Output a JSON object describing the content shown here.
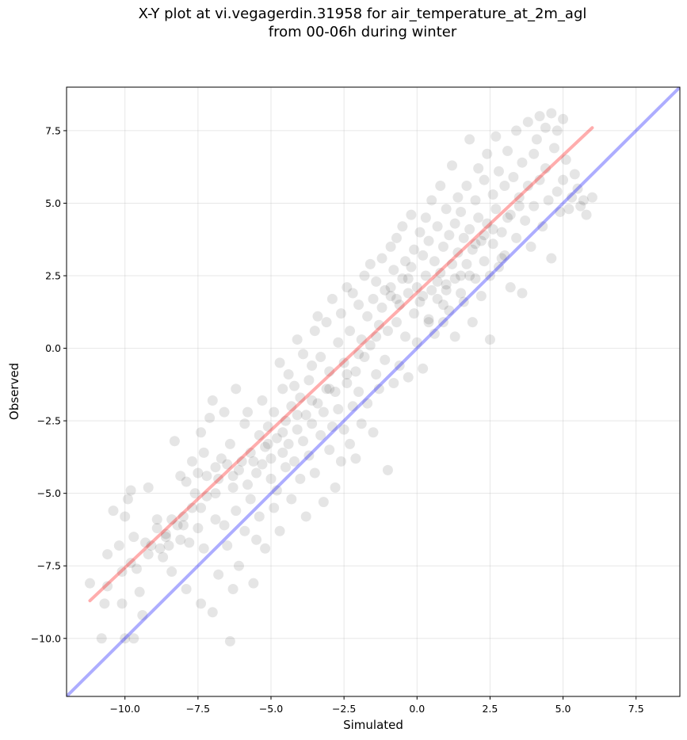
{
  "chart_data": {
    "type": "scatter",
    "title_lines": [
      "X-Y plot at vi.vegagerdin.31958 for air_temperature_at_2m_agl",
      "from 00-06h during winter"
    ],
    "xlabel": "Simulated",
    "ylabel": "Observed",
    "xlim": [
      -12,
      9
    ],
    "ylim": [
      -12,
      9
    ],
    "xticks": [
      -10.0,
      -7.5,
      -5.0,
      -2.5,
      0.0,
      2.5,
      5.0,
      7.5
    ],
    "yticks": [
      -10.0,
      -7.5,
      -5.0,
      -2.5,
      0.0,
      2.5,
      5.0,
      7.5
    ],
    "tick_labels": [
      "−10.0",
      "−7.5",
      "−5.0",
      "−2.5",
      "0.0",
      "2.5",
      "5.0",
      "7.5"
    ],
    "grid": true,
    "point_color": "#000000",
    "point_opacity": 0.1,
    "regression_line": {
      "color": "#ff0000",
      "x": [
        -11.2,
        6.0
      ],
      "y": [
        -8.7,
        7.6
      ]
    },
    "identity_line": {
      "color": "#0000ff",
      "x": [
        -12,
        9
      ],
      "y": [
        -12,
        9
      ]
    },
    "points": [
      [
        -11.2,
        -8.1
      ],
      [
        -10.8,
        -10
      ],
      [
        -10.7,
        -8.8
      ],
      [
        -10.6,
        -8.2
      ],
      [
        -10.6,
        -7.1
      ],
      [
        -10.4,
        -5.6
      ],
      [
        -10.2,
        -6.8
      ],
      [
        -10.1,
        -8.8
      ],
      [
        -10.1,
        -7.7
      ],
      [
        -10.0,
        -5.8
      ],
      [
        -10.0,
        -10
      ],
      [
        -9.9,
        -5.2
      ],
      [
        -9.8,
        -4.9
      ],
      [
        -9.7,
        -6.5
      ],
      [
        -9.7,
        -10
      ],
      [
        -9.6,
        -7.6
      ],
      [
        -9.5,
        -8.4
      ],
      [
        -9.4,
        -9.2
      ],
      [
        -9.3,
        -6.7
      ],
      [
        -9.2,
        -4.8
      ],
      [
        -9.1,
        -6.8
      ],
      [
        -8.9,
        -5.9
      ],
      [
        -8.9,
        -6.2
      ],
      [
        -8.8,
        -6.9
      ],
      [
        -8.7,
        -7.2
      ],
      [
        -8.6,
        -6.5
      ],
      [
        -8.5,
        -6.8
      ],
      [
        -8.4,
        -5.9
      ],
      [
        -8.4,
        -7.7
      ],
      [
        -8.3,
        -3.2
      ],
      [
        -8.2,
        -6.1
      ],
      [
        -8.1,
        -6.6
      ],
      [
        -8.1,
        -4.4
      ],
      [
        -8.0,
        -5.8
      ],
      [
        -7.9,
        -8.3
      ],
      [
        -7.9,
        -4.6
      ],
      [
        -7.8,
        -6.7
      ],
      [
        -7.7,
        -3.9
      ],
      [
        -7.7,
        -5.5
      ],
      [
        -7.6,
        -5.0
      ],
      [
        -7.5,
        -6.2
      ],
      [
        -7.5,
        -4.3
      ],
      [
        -7.4,
        -8.8
      ],
      [
        -7.4,
        -2.9
      ],
      [
        -7.3,
        -3.6
      ],
      [
        -7.3,
        -6.9
      ],
      [
        -7.2,
        -5.1
      ],
      [
        -7.2,
        -4.4
      ],
      [
        -7.1,
        -2.4
      ],
      [
        -7.0,
        -9.1
      ],
      [
        -7.0,
        -1.8
      ],
      [
        -6.9,
        -5.9
      ],
      [
        -6.9,
        -4.1
      ],
      [
        -6.8,
        -4.5
      ],
      [
        -6.8,
        -7.8
      ],
      [
        -6.7,
        -3.8
      ],
      [
        -6.6,
        -6.1
      ],
      [
        -6.6,
        -2.2
      ],
      [
        -6.5,
        -4.0
      ],
      [
        -6.5,
        -6.8
      ],
      [
        -6.4,
        -3.3
      ],
      [
        -6.4,
        -10.1
      ],
      [
        -6.3,
        -4.8
      ],
      [
        -6.3,
        -8.3
      ],
      [
        -6.2,
        -5.6
      ],
      [
        -6.2,
        -1.4
      ],
      [
        -6.1,
        -4.2
      ],
      [
        -6.1,
        -7.5
      ],
      [
        -6.0,
        -3.9
      ],
      [
        -5.9,
        -2.6
      ],
      [
        -5.9,
        -6.3
      ],
      [
        -5.8,
        -4.7
      ],
      [
        -5.8,
        -2.2
      ],
      [
        -5.7,
        -5.2
      ],
      [
        -5.7,
        -3.6
      ],
      [
        -5.6,
        -8.1
      ],
      [
        -5.5,
        -4.3
      ],
      [
        -5.5,
        -6.6
      ],
      [
        -5.4,
        -3.0
      ],
      [
        -5.4,
        -5.8
      ],
      [
        -5.3,
        -4.0
      ],
      [
        -5.3,
        -1.8
      ],
      [
        -5.2,
        -3.4
      ],
      [
        -5.2,
        -6.9
      ],
      [
        -5.1,
        -2.7
      ],
      [
        -5.0,
        -4.5
      ],
      [
        -5.0,
        -3.8
      ],
      [
        -4.9,
        -5.5
      ],
      [
        -4.9,
        -2.2
      ],
      [
        -4.8,
        -3.1
      ],
      [
        -4.8,
        -4.9
      ],
      [
        -4.7,
        -0.5
      ],
      [
        -4.7,
        -6.3
      ],
      [
        -4.6,
        -3.6
      ],
      [
        -4.6,
        -1.4
      ],
      [
        -4.5,
        -4.1
      ],
      [
        -4.5,
        -2.5
      ],
      [
        -4.4,
        -3.3
      ],
      [
        -4.4,
        -0.9
      ],
      [
        -4.3,
        -5.2
      ],
      [
        -4.3,
        -2.0
      ],
      [
        -4.2,
        -3.9
      ],
      [
        -4.2,
        -1.3
      ],
      [
        -4.1,
        -2.8
      ],
      [
        -4.1,
        0.3
      ],
      [
        -4.0,
        -4.5
      ],
      [
        -4.0,
        -1.7
      ],
      [
        -3.9,
        -3.2
      ],
      [
        -3.9,
        -0.2
      ],
      [
        -3.8,
        -2.3
      ],
      [
        -3.8,
        -5.8
      ],
      [
        -3.7,
        -1.1
      ],
      [
        -3.7,
        -3.7
      ],
      [
        -3.6,
        -0.6
      ],
      [
        -3.6,
        -2.6
      ],
      [
        -3.5,
        0.6
      ],
      [
        -3.5,
        -4.3
      ],
      [
        -3.4,
        -1.9
      ],
      [
        -3.4,
        1.1
      ],
      [
        -3.3,
        -3.0
      ],
      [
        -3.3,
        -0.3
      ],
      [
        -3.2,
        -2.2
      ],
      [
        -3.2,
        -5.3
      ],
      [
        -3.1,
        -1.4
      ],
      [
        -3.1,
        0.9
      ],
      [
        -3.0,
        -3.5
      ],
      [
        -3.0,
        -0.8
      ],
      [
        -2.9,
        -2.7
      ],
      [
        -2.9,
        1.7
      ],
      [
        -2.8,
        -1.5
      ],
      [
        -2.8,
        -4.8
      ],
      [
        -2.7,
        0.2
      ],
      [
        -2.7,
        -2.1
      ],
      [
        -2.6,
        -3.9
      ],
      [
        -2.6,
        1.2
      ],
      [
        -2.5,
        -0.5
      ],
      [
        -2.5,
        -2.8
      ],
      [
        -2.4,
        2.1
      ],
      [
        -2.4,
        -1.2
      ],
      [
        -2.3,
        -3.3
      ],
      [
        -2.3,
        0.6
      ],
      [
        -2.2,
        -2.0
      ],
      [
        -2.2,
        1.9
      ],
      [
        -2.1,
        -0.8
      ],
      [
        -2.1,
        -3.8
      ],
      [
        -2.0,
        1.5
      ],
      [
        -2.0,
        -1.5
      ],
      [
        -1.9,
        0.3
      ],
      [
        -1.9,
        -2.6
      ],
      [
        -1.8,
        2.5
      ],
      [
        -1.8,
        -0.3
      ],
      [
        -1.7,
        1.1
      ],
      [
        -1.7,
        -1.9
      ],
      [
        -1.6,
        2.9
      ],
      [
        -1.6,
        0.1
      ],
      [
        -1.5,
        -2.9
      ],
      [
        -1.5,
        1.7
      ],
      [
        -1.4,
        -0.9
      ],
      [
        -1.4,
        2.3
      ],
      [
        -1.3,
        0.8
      ],
      [
        -1.3,
        -1.4
      ],
      [
        -1.2,
        3.1
      ],
      [
        -1.2,
        1.4
      ],
      [
        -1.1,
        -0.4
      ],
      [
        -1.1,
        2.0
      ],
      [
        -1.0,
        -4.2
      ],
      [
        -1.0,
        0.6
      ],
      [
        -0.9,
        3.5
      ],
      [
        -0.9,
        1.8
      ],
      [
        -0.8,
        -1.2
      ],
      [
        -0.8,
        2.7
      ],
      [
        -0.7,
        0.9
      ],
      [
        -0.7,
        3.8
      ],
      [
        -0.6,
        1.5
      ],
      [
        -0.6,
        -0.6
      ],
      [
        -0.5,
        2.4
      ],
      [
        -0.5,
        4.2
      ],
      [
        -0.4,
        0.4
      ],
      [
        -0.4,
        3.0
      ],
      [
        -0.3,
        1.9
      ],
      [
        -0.3,
        -1.0
      ],
      [
        -0.2,
        2.8
      ],
      [
        -0.2,
        4.6
      ],
      [
        -0.1,
        1.2
      ],
      [
        -0.1,
        3.4
      ],
      [
        0.0,
        0.2
      ],
      [
        0.0,
        2.1
      ],
      [
        0.1,
        4.0
      ],
      [
        0.1,
        1.6
      ],
      [
        0.2,
        3.2
      ],
      [
        0.2,
        -0.7
      ],
      [
        0.3,
        2.5
      ],
      [
        0.3,
        4.5
      ],
      [
        0.4,
        1.0
      ],
      [
        0.4,
        3.7
      ],
      [
        0.5,
        2.0
      ],
      [
        0.5,
        5.1
      ],
      [
        0.6,
        0.5
      ],
      [
        0.6,
        3.0
      ],
      [
        0.7,
        4.2
      ],
      [
        0.7,
        1.7
      ],
      [
        0.8,
        2.6
      ],
      [
        0.8,
        5.6
      ],
      [
        0.9,
        3.5
      ],
      [
        0.9,
        0.9
      ],
      [
        1.0,
        4.8
      ],
      [
        1.0,
        2.2
      ],
      [
        1.1,
        3.9
      ],
      [
        1.1,
        1.3
      ],
      [
        1.2,
        2.9
      ],
      [
        1.2,
        6.3
      ],
      [
        1.3,
        4.3
      ],
      [
        1.3,
        0.4
      ],
      [
        1.4,
        3.3
      ],
      [
        1.4,
        5.2
      ],
      [
        1.5,
        2.5
      ],
      [
        1.5,
        4.7
      ],
      [
        1.6,
        3.8
      ],
      [
        1.6,
        1.6
      ],
      [
        1.7,
        5.6
      ],
      [
        1.7,
        2.9
      ],
      [
        1.8,
        4.1
      ],
      [
        1.8,
        7.2
      ],
      [
        1.9,
        3.4
      ],
      [
        1.9,
        0.9
      ],
      [
        2.0,
        5.1
      ],
      [
        2.0,
        2.4
      ],
      [
        2.1,
        4.5
      ],
      [
        2.1,
        6.2
      ],
      [
        2.2,
        3.7
      ],
      [
        2.2,
        1.8
      ],
      [
        2.3,
        5.8
      ],
      [
        2.3,
        3.0
      ],
      [
        2.4,
        6.7
      ],
      [
        2.4,
        4.3
      ],
      [
        2.5,
        2.5
      ],
      [
        2.5,
        0.3
      ],
      [
        2.6,
        5.3
      ],
      [
        2.6,
        3.6
      ],
      [
        2.7,
        7.3
      ],
      [
        2.7,
        4.8
      ],
      [
        2.8,
        2.8
      ],
      [
        2.8,
        6.1
      ],
      [
        2.9,
        4.0
      ],
      [
        3.0,
        5.6
      ],
      [
        3.0,
        3.2
      ],
      [
        3.1,
        6.8
      ],
      [
        3.2,
        4.6
      ],
      [
        3.2,
        2.1
      ],
      [
        3.3,
        5.9
      ],
      [
        3.4,
        7.5
      ],
      [
        3.4,
        3.8
      ],
      [
        3.5,
        5.2
      ],
      [
        3.6,
        6.4
      ],
      [
        3.6,
        1.9
      ],
      [
        3.7,
        4.4
      ],
      [
        3.8,
        7.8
      ],
      [
        3.8,
        5.6
      ],
      [
        3.9,
        3.5
      ],
      [
        4.0,
        6.7
      ],
      [
        4.0,
        4.9
      ],
      [
        4.1,
        7.2
      ],
      [
        4.2,
        5.8
      ],
      [
        4.2,
        8.0
      ],
      [
        4.3,
        4.2
      ],
      [
        4.4,
        6.2
      ],
      [
        4.4,
        7.6
      ],
      [
        4.5,
        5.1
      ],
      [
        4.6,
        8.1
      ],
      [
        4.6,
        3.1
      ],
      [
        4.7,
        6.9
      ],
      [
        4.8,
        5.4
      ],
      [
        4.8,
        7.5
      ],
      [
        4.9,
        4.7
      ],
      [
        5.0,
        7.9
      ],
      [
        5.0,
        5.8
      ],
      [
        5.1,
        6.5
      ],
      [
        5.2,
        4.8
      ],
      [
        5.3,
        5.2
      ],
      [
        5.4,
        6.0
      ],
      [
        5.5,
        5.5
      ],
      [
        5.6,
        4.9
      ],
      [
        5.7,
        5.1
      ],
      [
        5.8,
        4.6
      ],
      [
        6.0,
        5.2
      ],
      [
        1.0,
        2.0
      ],
      [
        1.3,
        2.4
      ],
      [
        0.7,
        2.3
      ],
      [
        1.5,
        1.9
      ],
      [
        0.2,
        1.8
      ],
      [
        -0.3,
        2.4
      ],
      [
        0.9,
        1.5
      ],
      [
        -0.7,
        1.7
      ],
      [
        2.0,
        3.6
      ],
      [
        2.3,
        3.9
      ],
      [
        2.6,
        4.1
      ],
      [
        3.1,
        4.5
      ],
      [
        3.5,
        4.9
      ],
      [
        -2.0,
        -0.2
      ],
      [
        -2.4,
        -0.9
      ],
      [
        -3.0,
        -1.4
      ],
      [
        -3.6,
        -1.8
      ],
      [
        -4.1,
        -2.3
      ],
      [
        -4.6,
        -2.9
      ],
      [
        -5.1,
        -3.3
      ],
      [
        -5.6,
        -3.9
      ],
      [
        -6.3,
        -4.4
      ],
      [
        -6.9,
        -5.0
      ],
      [
        -7.4,
        -5.5
      ],
      [
        -8.0,
        -6.1
      ],
      [
        -8.6,
        -6.4
      ],
      [
        -9.2,
        -7.1
      ],
      [
        -9.8,
        -7.4
      ],
      [
        -0.9,
        2.1
      ],
      [
        -1.4,
        0.4
      ],
      [
        0.4,
        0.9
      ],
      [
        1.8,
        2.5
      ],
      [
        2.9,
        3.1
      ]
    ]
  }
}
